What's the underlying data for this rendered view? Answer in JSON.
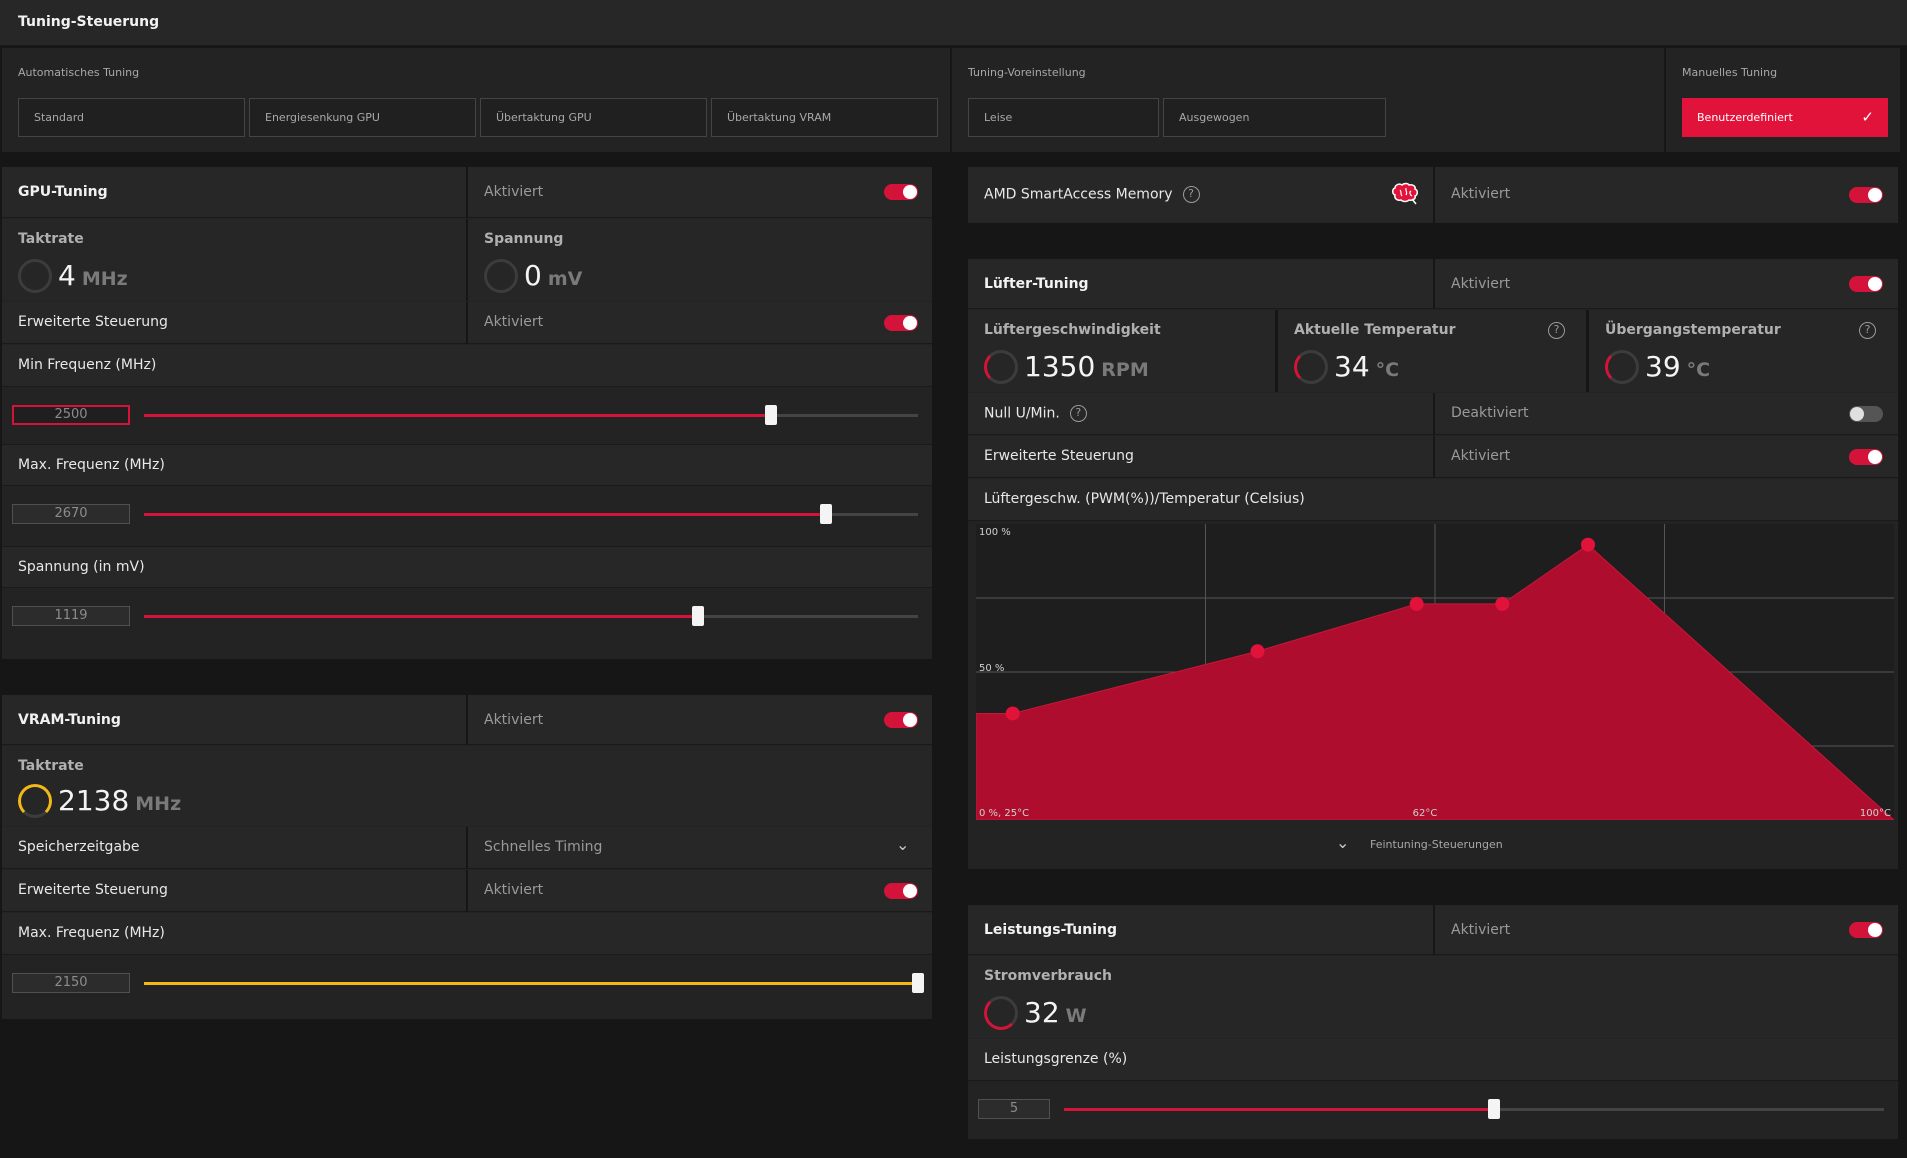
{
  "header": {
    "title": "Tuning-Steuerung"
  },
  "auto_tuning": {
    "label": "Automatisches Tuning",
    "presets": [
      "Standard",
      "Energiesenkung GPU",
      "Übertaktung GPU",
      "Übertaktung VRAM"
    ]
  },
  "tuning_preset": {
    "label": "Tuning-Voreinstellung",
    "presets": [
      "Leise",
      "Ausgewogen"
    ]
  },
  "manual_tuning": {
    "label": "Manuelles Tuning",
    "active": "Benutzerdefiniert"
  },
  "gpu_tuning": {
    "title": "GPU-Tuning",
    "status": "Aktiviert",
    "clock": {
      "title": "Taktrate",
      "value": "4",
      "unit": "MHz"
    },
    "voltage": {
      "title": "Spannung",
      "value": "0",
      "unit": "mV"
    },
    "advanced": {
      "label": "Erweiterte Steuerung",
      "status": "Aktiviert"
    },
    "min_freq": {
      "label": "Min Frequenz (MHz)",
      "value": "2500",
      "fraction": 0.81
    },
    "max_freq": {
      "label": "Max. Frequenz (MHz)",
      "value": "2670",
      "fraction": 0.881
    },
    "voltage_slider": {
      "label": "Spannung (in mV)",
      "value": "1119",
      "fraction": 0.716
    }
  },
  "vram_tuning": {
    "title": "VRAM-Tuning",
    "status": "Aktiviert",
    "clock": {
      "title": "Taktrate",
      "value": "2138",
      "unit": "MHz"
    },
    "memory_timing": {
      "label": "Speicherzeitgabe",
      "value": "Schnelles Timing"
    },
    "advanced": {
      "label": "Erweiterte Steuerung",
      "status": "Aktiviert"
    },
    "max_freq": {
      "label": "Max. Frequenz (MHz)",
      "value": "2150",
      "fraction": 1.0
    }
  },
  "smart_access": {
    "label": "AMD SmartAccess Memory",
    "status": "Aktiviert"
  },
  "fan_tuning": {
    "title": "Lüfter-Tuning",
    "status": "Aktiviert",
    "fan_speed": {
      "title": "Lüftergeschwindigkeit",
      "value": "1350",
      "unit": "RPM"
    },
    "current_temp": {
      "title": "Aktuelle Temperatur",
      "value": "34",
      "unit": "°C"
    },
    "junction_temp": {
      "title": "Übergangstemperatur",
      "value": "39",
      "unit": "°C"
    },
    "zero_rpm": {
      "label": "Null U/Min.",
      "status": "Deaktiviert"
    },
    "advanced": {
      "label": "Erweiterte Steuerung",
      "status": "Aktiviert"
    },
    "curve_title": "Lüftergeschw. (PWM(%))/Temperatur (Celsius)",
    "fine_tuning": "Feintuning-Steuerungen"
  },
  "power_tuning": {
    "title": "Leistungs-Tuning",
    "status": "Aktiviert",
    "power": {
      "title": "Stromverbrauch",
      "value": "32",
      "unit": "W"
    },
    "limit": {
      "label": "Leistungsgrenze (%)",
      "value": "5",
      "fraction": 0.524
    }
  },
  "chart_data": {
    "type": "area",
    "ylabel_top": "100 %",
    "ylabel_mid": "50 %",
    "x_labels": [
      "0 %, 25°C",
      "62°C",
      "100°C"
    ],
    "xlim": [
      25,
      100
    ],
    "ylim": [
      0,
      100
    ],
    "points": [
      {
        "x": 25,
        "y": 36
      },
      {
        "x": 28,
        "y": 36
      },
      {
        "x": 48,
        "y": 57
      },
      {
        "x": 61,
        "y": 73
      },
      {
        "x": 68,
        "y": 73
      },
      {
        "x": 75,
        "y": 93
      }
    ],
    "fill_color": "#ae0d2e",
    "point_color": "#e2133a"
  }
}
